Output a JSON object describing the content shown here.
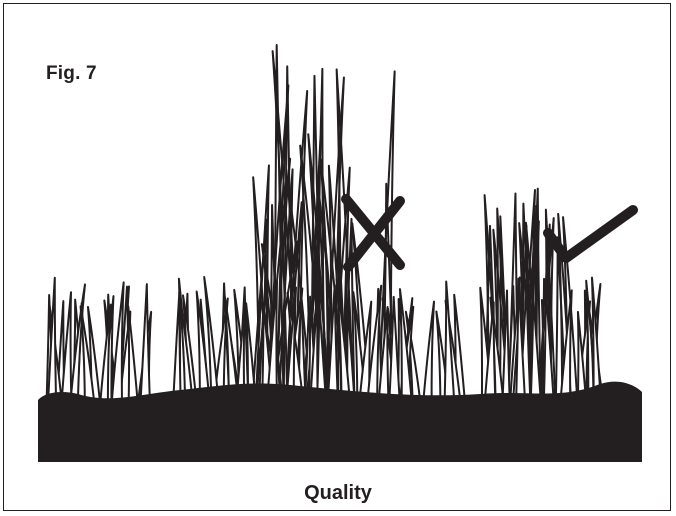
{
  "figure": {
    "label": "Fig. 7",
    "caption": "Quality",
    "ink_color": "#231f20"
  },
  "illustration": {
    "ground": "soil-mound",
    "regions": [
      {
        "name": "short-lawn-left",
        "kind": "grass-short"
      },
      {
        "name": "tall-grass-center",
        "kind": "grass-tall"
      },
      {
        "name": "medium-grass-right",
        "kind": "grass-medium"
      },
      {
        "name": "short-lawn-right",
        "kind": "grass-short"
      }
    ],
    "marks": [
      {
        "icon": "cross-mark-icon",
        "meaning": "incorrect"
      },
      {
        "icon": "check-mark-icon",
        "meaning": "correct"
      }
    ]
  }
}
